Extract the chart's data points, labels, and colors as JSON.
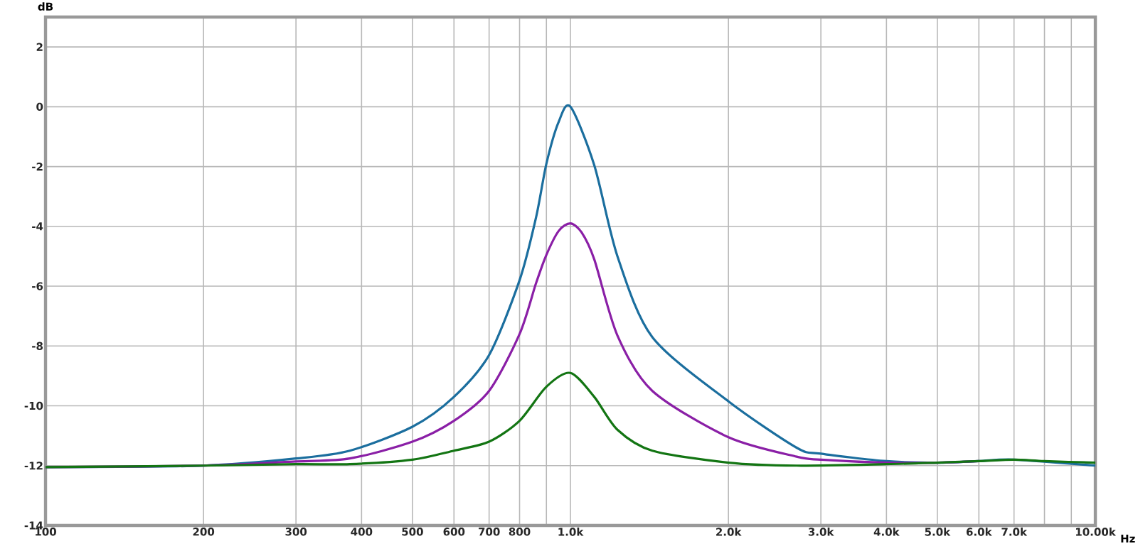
{
  "chart_data": {
    "type": "line",
    "xlabel": "Hz",
    "ylabel": "dB",
    "log": "x",
    "grid": true,
    "xlim": [
      100,
      10000
    ],
    "ylim": [
      -14,
      3
    ],
    "xticks": [
      100,
      200,
      300,
      400,
      500,
      600,
      700,
      800,
      {
        "value": 900,
        "label": null
      },
      {
        "value": 1000,
        "label": "1.0k"
      },
      {
        "value": 2000,
        "label": "2.0k"
      },
      {
        "value": 3000,
        "label": "3.0k"
      },
      {
        "value": 4000,
        "label": "4.0k"
      },
      {
        "value": 5000,
        "label": "5.0k"
      },
      {
        "value": 6000,
        "label": "6.0k"
      },
      {
        "value": 7000,
        "label": "7.0k"
      },
      {
        "value": 8000,
        "label": null
      },
      {
        "value": 9000,
        "label": null
      },
      {
        "value": 10000,
        "label": "10.00k"
      }
    ],
    "yticks": [
      -14,
      -12,
      -10,
      -8,
      -6,
      -4,
      -2,
      0,
      2
    ],
    "series": [
      {
        "color": "#1b6e9e",
        "x": [
          100,
          200,
          300,
          380,
          500,
          600,
          700,
          800,
          860,
          900,
          950,
          1000,
          1110,
          1229,
          1432,
          2000,
          2697,
          3000,
          4000,
          5000,
          6000,
          7000,
          10000
        ],
        "values": [
          -12.05,
          -12.0,
          -11.76,
          -11.5,
          -10.7,
          -9.7,
          -8.3,
          -5.8,
          -3.7,
          -1.9,
          -0.5,
          0,
          -1.95,
          -5.0,
          -7.7,
          -9.85,
          -11.4,
          -11.6,
          -11.85,
          -11.9,
          -11.85,
          -11.8,
          -12.0
        ]
      },
      {
        "color": "#8a1fa6",
        "x": [
          100,
          200,
          300,
          380,
          500,
          600,
          700,
          800,
          860,
          900,
          950,
          1000,
          1050,
          1110,
          1229,
          1432,
          2000,
          2697,
          3000,
          4000,
          5000,
          6000
        ],
        "values": [
          -12.05,
          -12.0,
          -11.86,
          -11.76,
          -11.2,
          -10.5,
          -9.5,
          -7.6,
          -5.9,
          -4.95,
          -4.15,
          -3.9,
          -4.2,
          -5.1,
          -7.65,
          -9.5,
          -11.05,
          -11.7,
          -11.8,
          -11.9,
          -11.9,
          -11.85
        ]
      },
      {
        "color": "#137513",
        "x": [
          100,
          200,
          300,
          380,
          500,
          600,
          700,
          800,
          900,
          1000,
          1110,
          1229,
          1432,
          2000,
          2697,
          4000,
          5000,
          6000,
          7000,
          8000,
          10000
        ],
        "values": [
          -12.05,
          -12.0,
          -11.95,
          -11.95,
          -11.8,
          -11.5,
          -11.2,
          -10.5,
          -9.36,
          -8.9,
          -9.7,
          -10.8,
          -11.5,
          -11.9,
          -12.0,
          -11.95,
          -11.9,
          -11.85,
          -11.8,
          -11.85,
          -11.9
        ]
      }
    ]
  }
}
